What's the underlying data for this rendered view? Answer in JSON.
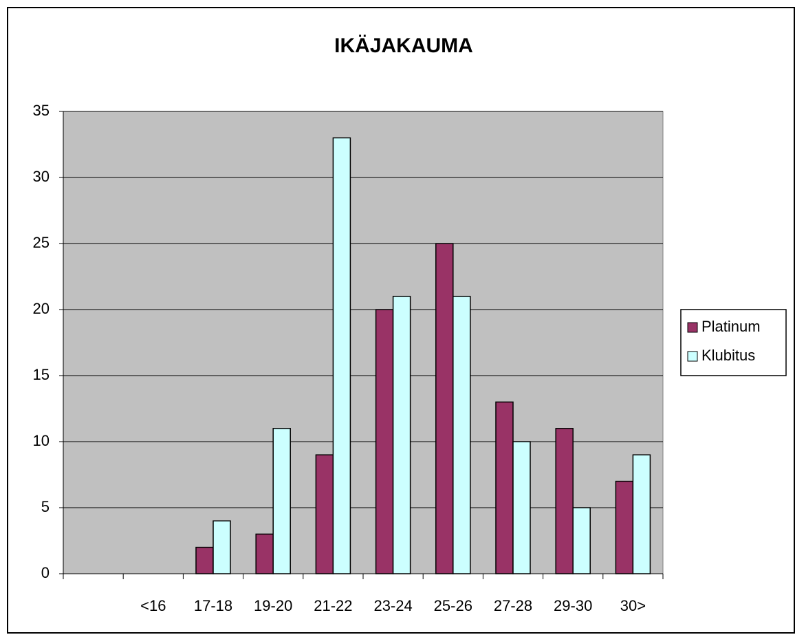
{
  "chart_data": {
    "type": "bar",
    "title": "IKÄJAKAUMA",
    "categories": [
      null,
      "<16",
      "17-18",
      "19-20",
      "21-22",
      "23-24",
      "25-26",
      "27-28",
      "29-30",
      "30>"
    ],
    "series": [
      {
        "name": "Platinum",
        "color": "#993366",
        "values": [
          null,
          null,
          2,
          3,
          9,
          20,
          25,
          13,
          11,
          7
        ]
      },
      {
        "name": "Klubitus",
        "color": "#ccffff",
        "values": [
          null,
          null,
          4,
          11,
          33,
          21,
          21,
          10,
          5,
          9
        ]
      }
    ],
    "ylim": [
      0,
      35
    ],
    "yticks": [
      0,
      5,
      10,
      15,
      20,
      25,
      30,
      35
    ],
    "grid": true,
    "legend": "right"
  }
}
